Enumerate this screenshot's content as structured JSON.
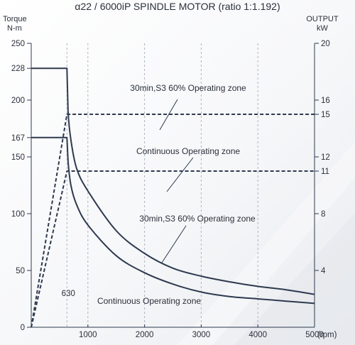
{
  "chart_data": {
    "type": "line",
    "title": "α22 / 6000iP SPINDLE MOTOR (ratio 1:1.192)",
    "left_axis": {
      "label_line1": "Torque",
      "label_line2": "N-m",
      "ylim": [
        0,
        250
      ],
      "ticks": [
        {
          "value": 0,
          "label": "0"
        },
        {
          "value": 50,
          "label": "50"
        },
        {
          "value": 100,
          "label": "100"
        },
        {
          "value": 150,
          "label": "150"
        },
        {
          "value": 167,
          "label": "167"
        },
        {
          "value": 200,
          "label": "200"
        },
        {
          "value": 228,
          "label": "228"
        },
        {
          "value": 250,
          "label": "250"
        }
      ]
    },
    "right_axis": {
      "label_line1": "OUTPUT",
      "label_line2": "kW",
      "ylim": [
        0,
        20
      ],
      "ticks": [
        {
          "value": 4,
          "label": "4"
        },
        {
          "value": 8,
          "label": "8"
        },
        {
          "value": 11,
          "label": "11"
        },
        {
          "value": 12,
          "label": "12"
        },
        {
          "value": 15,
          "label": "15"
        },
        {
          "value": 16,
          "label": "16"
        },
        {
          "value": 20,
          "label": "20"
        }
      ]
    },
    "x_axis": {
      "xlim": [
        0,
        5000
      ],
      "unit": "(rpm)",
      "ticks": [
        {
          "value": 1000,
          "label": "1000"
        },
        {
          "value": 2000,
          "label": "2000"
        },
        {
          "value": 3000,
          "label": "3000"
        },
        {
          "value": 4000,
          "label": "4000"
        },
        {
          "value": 5000,
          "label": "5000"
        }
      ],
      "base_speed": 630,
      "base_speed_label": "630"
    },
    "grid": true,
    "series": [
      {
        "axis": "torque",
        "style": "solid",
        "values": [
          [
            0,
            228
          ],
          [
            630,
            228
          ],
          [
            650,
            190
          ],
          [
            700,
            165
          ],
          [
            800,
            140
          ],
          [
            1000,
            120
          ],
          [
            1500,
            85
          ],
          [
            2000,
            65
          ],
          [
            2500,
            52
          ],
          [
            3000,
            45
          ],
          [
            3500,
            40
          ],
          [
            4000,
            36
          ],
          [
            4500,
            33
          ],
          [
            5000,
            29
          ]
        ]
      },
      {
        "axis": "torque",
        "style": "solid",
        "values": [
          [
            0,
            167
          ],
          [
            630,
            167
          ],
          [
            650,
            146
          ],
          [
            700,
            125
          ],
          [
            800,
            108
          ],
          [
            1000,
            90
          ],
          [
            1500,
            63
          ],
          [
            2000,
            48
          ],
          [
            2500,
            38
          ],
          [
            3000,
            31
          ],
          [
            3500,
            27
          ],
          [
            4000,
            25
          ],
          [
            4500,
            23
          ],
          [
            5000,
            21
          ]
        ]
      },
      {
        "axis": "output",
        "style": "dashed",
        "values": [
          [
            0,
            0
          ],
          [
            630,
            15
          ],
          [
            5000,
            15
          ]
        ]
      },
      {
        "axis": "output",
        "style": "dashed",
        "values": [
          [
            0,
            0
          ],
          [
            630,
            11
          ],
          [
            5000,
            11
          ]
        ]
      }
    ],
    "annotations": [
      {
        "text": "30min,S3 60% Operating zone",
        "x": 2000,
        "y": 210
      },
      {
        "text": "Continuous Operating zone",
        "x": 2000,
        "y": 158
      },
      {
        "text": "30min,S3 60% Operating zone",
        "x": 2800,
        "y": 95
      },
      {
        "text": "Continuous Operating zone",
        "x": 2100,
        "y": 22
      }
    ]
  }
}
